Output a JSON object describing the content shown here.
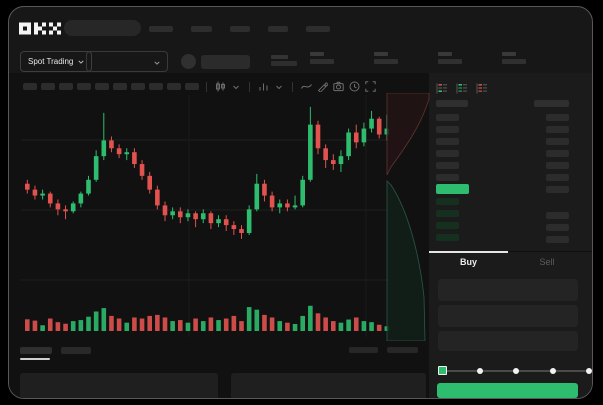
{
  "brand": {
    "name": "OKX"
  },
  "header": {
    "nav_placeholders": [
      24,
      21,
      20,
      20,
      24
    ]
  },
  "market_bar": {
    "market_selector_label": "Spot Trading",
    "ticker_stat_count": 4
  },
  "chart_toolbar": {
    "placeholder_count": 10,
    "icons": [
      "candle-type-icon",
      "chevron-down-icon",
      "indicators-icon",
      "chevron-down-icon",
      "line-tool-icon",
      "draw-icon",
      "camera-icon",
      "clock-icon",
      "fullscreen-icon"
    ]
  },
  "chart_data": {
    "type": "candlestick",
    "up_color": "#2EBD6E",
    "down_color": "#E0534F",
    "grid": true,
    "candles": [
      [
        58,
        60,
        53,
        55
      ],
      [
        55,
        57,
        50,
        52
      ],
      [
        52,
        55,
        50,
        53
      ],
      [
        53,
        54,
        46,
        48
      ],
      [
        48,
        50,
        42,
        45
      ],
      [
        45,
        47,
        40,
        44
      ],
      [
        44,
        49,
        43,
        48
      ],
      [
        48,
        54,
        46,
        53
      ],
      [
        53,
        62,
        52,
        60
      ],
      [
        60,
        75,
        59,
        72
      ],
      [
        72,
        94,
        70,
        80
      ],
      [
        80,
        82,
        74,
        76
      ],
      [
        76,
        78,
        71,
        73
      ],
      [
        73,
        76,
        70,
        74
      ],
      [
        74,
        76,
        66,
        68
      ],
      [
        68,
        70,
        60,
        62
      ],
      [
        62,
        64,
        53,
        55
      ],
      [
        55,
        57,
        45,
        47
      ],
      [
        47,
        49,
        39,
        42
      ],
      [
        42,
        46,
        40,
        44
      ],
      [
        44,
        46,
        38,
        41
      ],
      [
        41,
        45,
        39,
        43
      ],
      [
        43,
        44,
        36,
        40
      ],
      [
        40,
        45,
        38,
        43
      ],
      [
        43,
        44,
        35,
        38
      ],
      [
        38,
        42,
        36,
        40
      ],
      [
        40,
        42,
        34,
        37
      ],
      [
        37,
        39,
        32,
        35
      ],
      [
        35,
        37,
        30,
        33
      ],
      [
        33,
        47,
        32,
        45
      ],
      [
        45,
        63,
        44,
        58
      ],
      [
        58,
        60,
        49,
        52
      ],
      [
        52,
        54,
        44,
        46
      ],
      [
        46,
        50,
        43,
        48
      ],
      [
        48,
        50,
        44,
        46
      ],
      [
        46,
        52,
        45,
        47
      ],
      [
        47,
        62,
        46,
        60
      ],
      [
        60,
        97,
        59,
        88
      ],
      [
        88,
        90,
        73,
        76
      ],
      [
        76,
        78,
        66,
        70
      ],
      [
        70,
        73,
        65,
        68
      ],
      [
        68,
        75,
        64,
        72
      ],
      [
        72,
        86,
        70,
        84
      ],
      [
        84,
        88,
        76,
        79
      ],
      [
        79,
        89,
        77,
        86
      ],
      [
        86,
        95,
        84,
        91
      ],
      [
        91,
        92,
        81,
        83
      ],
      [
        83,
        93,
        80,
        86
      ]
    ],
    "volume": [
      45,
      40,
      22,
      48,
      34,
      28,
      38,
      42,
      55,
      75,
      88,
      58,
      48,
      32,
      52,
      48,
      58,
      62,
      52,
      38,
      42,
      32,
      48,
      38,
      52,
      42,
      48,
      58,
      38,
      92,
      82,
      62,
      52,
      38,
      32,
      27,
      58,
      97,
      68,
      52,
      38,
      32,
      44,
      52,
      38,
      34,
      24,
      18
    ]
  },
  "depth_overlay": {
    "ask_color": "#6E3A36",
    "bid_color": "#2F6450"
  },
  "order_book": {
    "display_mode_icons": [
      "book-all-icon",
      "book-bids-icon",
      "book-asks-icon"
    ],
    "ask_row_count": 6,
    "bid_row_count": 4,
    "right_top_row_count": 7,
    "right_bottom_row_count": 3,
    "mid_price_color": "#2EBD6E"
  },
  "trade_form": {
    "tabs": [
      {
        "label": "Buy",
        "active": true
      },
      {
        "label": "Sell",
        "active": false
      }
    ],
    "input_count": 3,
    "slider": {
      "stops": 5,
      "active_stop": 0
    },
    "submit_color": "#2EBD6E"
  },
  "bottom_panel": {
    "tab_count": 2,
    "active_tab": 0,
    "panel_count": 2,
    "footer_bar_count": 2
  }
}
